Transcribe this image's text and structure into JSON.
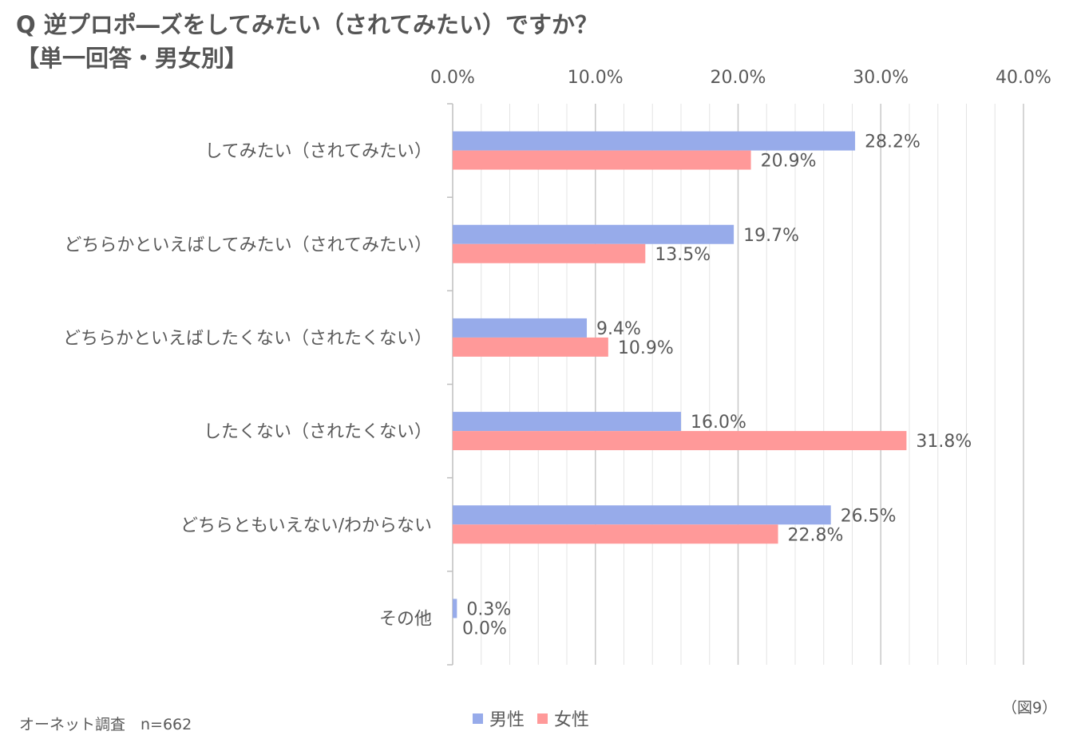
{
  "title": {
    "line1": "Q 逆プロポ―ズをしてみたい（されてみたい）ですか？",
    "line2": "【単一回答・男女別】"
  },
  "source": "オーネット調査　n=662",
  "figure_number": "（図9）",
  "legend": [
    {
      "name": "男性",
      "color": "#97ABEA"
    },
    {
      "name": "女性",
      "color": "#FF9999"
    }
  ],
  "chart_data": {
    "type": "bar",
    "orientation": "horizontal",
    "categories": [
      "してみたい（されてみたい）",
      "どちらかといえばしてみたい（されてみたい）",
      "どちらかといえばしたくない（されたくない）",
      "したくない（されたくない）",
      "どちらともいえない/わからない",
      "その他"
    ],
    "series": [
      {
        "name": "男性",
        "color": "#97ABEA",
        "values": [
          28.2,
          19.7,
          9.4,
          16.0,
          26.5,
          0.3
        ],
        "labels": [
          "28.2%",
          "19.7%",
          "9.4%",
          "16.0%",
          "26.5%",
          "0.3%"
        ]
      },
      {
        "name": "女性",
        "color": "#FF9999",
        "values": [
          20.9,
          13.5,
          10.9,
          31.8,
          22.8,
          0.0
        ],
        "labels": [
          "20.9%",
          "13.5%",
          "10.9%",
          "31.8%",
          "22.8%",
          "0.0%"
        ]
      }
    ],
    "xlim": [
      0,
      40
    ],
    "major_ticks": [
      0,
      10,
      20,
      30,
      40
    ],
    "tick_labels": [
      "0.0%",
      "10.0%",
      "20.0%",
      "30.0%",
      "40.0%"
    ],
    "minor_step": 2,
    "axis_position": "top",
    "grid": true,
    "legend_position": "bottom"
  }
}
